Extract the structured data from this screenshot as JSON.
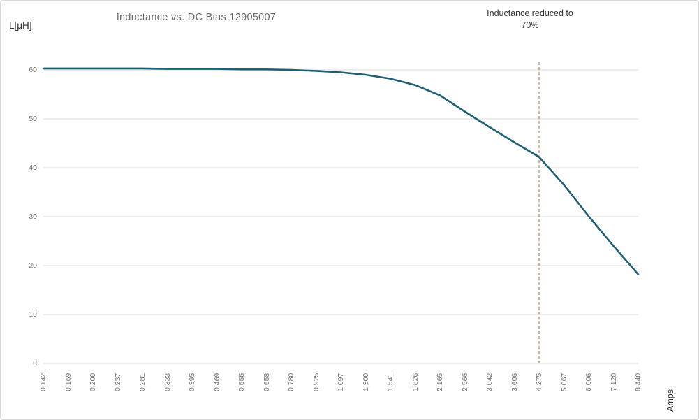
{
  "chart_data": {
    "type": "line",
    "title": "Inductance vs. DC Bias 12905007",
    "ylabel": "L[μH]",
    "xlabel": "Amps",
    "categories": [
      "0,142",
      "0,169",
      "0,200",
      "0,237",
      "0,281",
      "0,333",
      "0,395",
      "0,469",
      "0,555",
      "0,658",
      "0,780",
      "0,925",
      "1,097",
      "1,300",
      "1,541",
      "1,826",
      "2,165",
      "2,566",
      "3,042",
      "3,606",
      "4,275",
      "5,067",
      "6,006",
      "7,120",
      "8,440"
    ],
    "values": [
      60.3,
      60.3,
      60.3,
      60.3,
      60.3,
      60.2,
      60.2,
      60.2,
      60.1,
      60.1,
      60.0,
      59.8,
      59.5,
      59.0,
      58.2,
      56.9,
      54.8,
      51.5,
      48.3,
      45.2,
      42.2,
      36.5,
      30.1,
      24.0,
      18.2
    ],
    "ylim": [
      0,
      60
    ],
    "y_ticks": [
      0,
      10,
      20,
      30,
      40,
      50,
      60
    ],
    "grid": "horizontal-only",
    "legend": "none",
    "line_color": "#1E5F76",
    "gridline_color": "#D9D9D9",
    "annotation": {
      "text": "Inductance reduced to 70%",
      "at_category": "4,275",
      "line_color": "#C5854F",
      "line_style": "dashed"
    }
  }
}
